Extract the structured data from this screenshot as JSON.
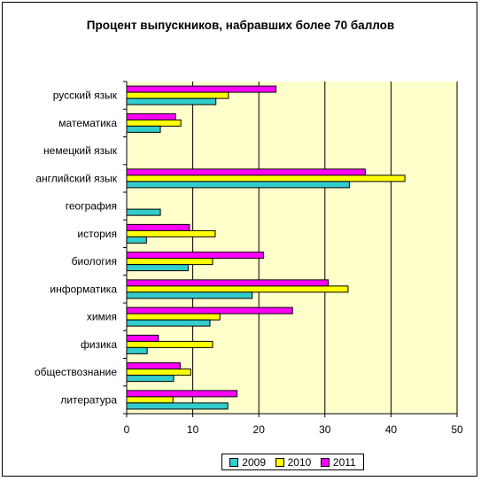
{
  "chart_data": {
    "type": "bar",
    "orientation": "horizontal",
    "title": "Процент выпускников, набравших более 70 баллов",
    "categories": [
      "русский язык",
      "математика",
      "немецкий язык",
      "английский язык",
      "география",
      "история",
      "биология",
      "информатика",
      "химия",
      "физика",
      "обществознание",
      "литература"
    ],
    "series": [
      {
        "name": "2009",
        "color": "#33CCCC",
        "values": [
          13.5,
          5.1,
          0,
          33.7,
          5.1,
          3.0,
          9.3,
          19.0,
          12.6,
          3.1,
          7.1,
          15.3
        ]
      },
      {
        "name": "2010",
        "color": "#FFFF00",
        "values": [
          15.4,
          8.2,
          0,
          42.1,
          0,
          13.4,
          13.0,
          33.5,
          14.1,
          13.0,
          9.7,
          7.0
        ]
      },
      {
        "name": "2011",
        "color": "#FF00FF",
        "values": [
          22.6,
          7.4,
          0,
          36.1,
          0,
          9.5,
          20.7,
          30.5,
          25.1,
          4.8,
          8.1,
          16.7
        ]
      }
    ],
    "xlim": [
      0,
      50
    ],
    "xticks": [
      0,
      10,
      20,
      30,
      40,
      50
    ],
    "grid": true,
    "legend_position": "bottom",
    "plot_background": "#FFFFCC",
    "bar_border_color": "#000000"
  }
}
